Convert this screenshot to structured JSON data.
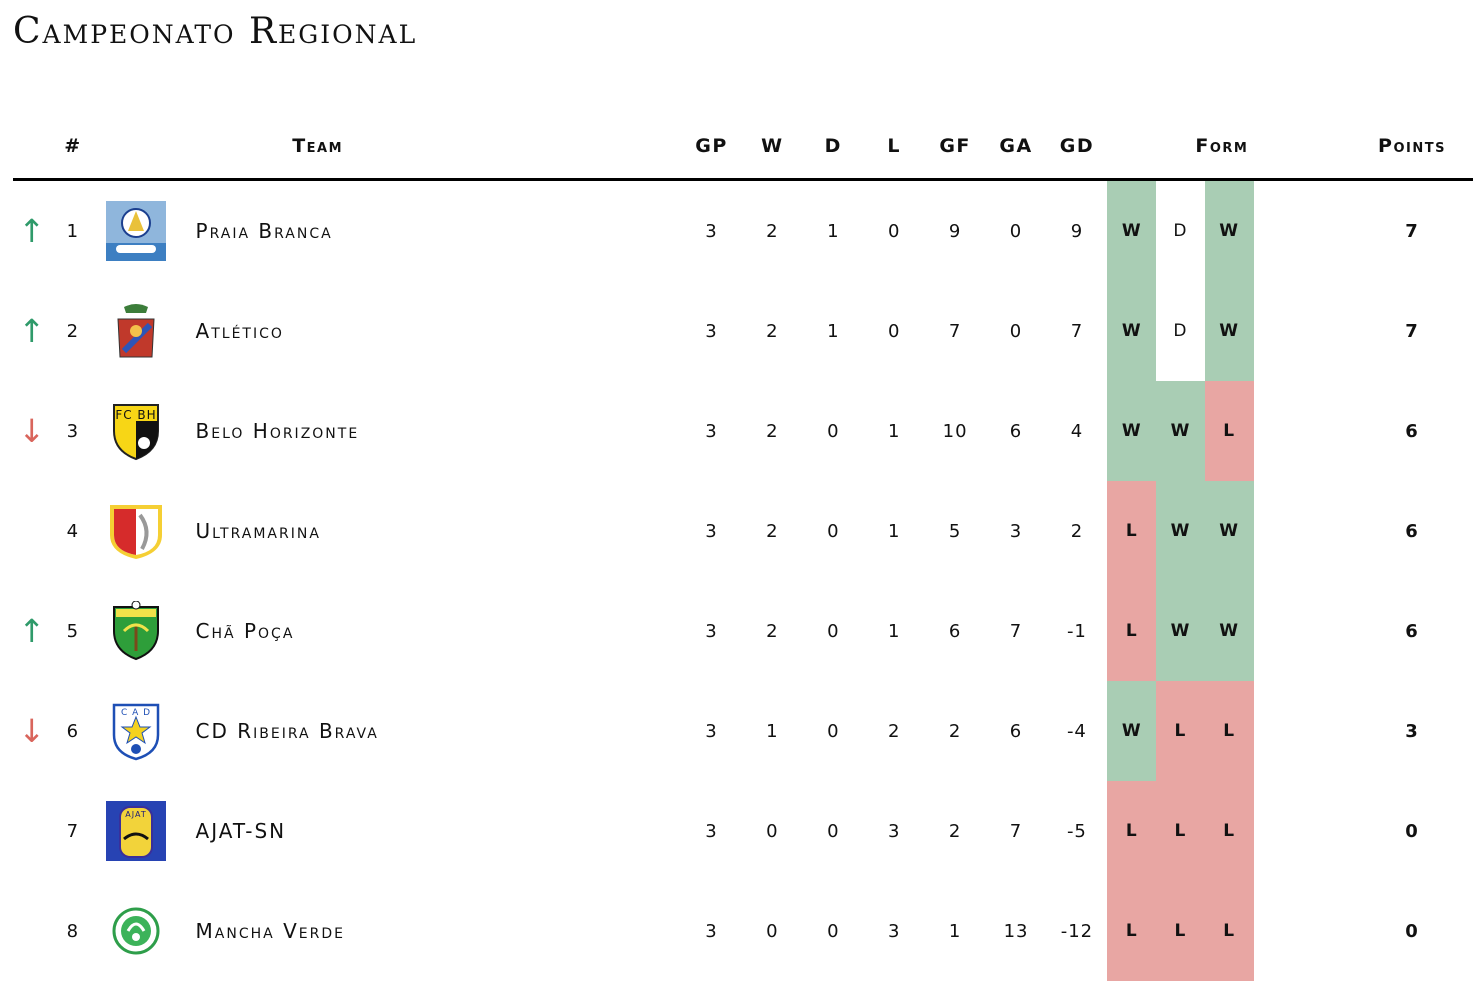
{
  "title": "Campeonato Regional",
  "headers": {
    "rank": "#",
    "team": "Team",
    "gp": "GP",
    "w": "W",
    "d": "D",
    "l": "L",
    "gf": "GF",
    "ga": "GA",
    "gd": "GD",
    "form": "Form",
    "points": "Points"
  },
  "rows": [
    {
      "change": "↑",
      "rank": "1",
      "team": "Praia Branca",
      "gp": "3",
      "w": "2",
      "d": "1",
      "l": "0",
      "gf": "9",
      "ga": "0",
      "gd": "9",
      "form": [
        "W",
        "D",
        "W"
      ],
      "points": "7"
    },
    {
      "change": "↑",
      "rank": "2",
      "team": "Atlético",
      "gp": "3",
      "w": "2",
      "d": "1",
      "l": "0",
      "gf": "7",
      "ga": "0",
      "gd": "7",
      "form": [
        "W",
        "D",
        "W"
      ],
      "points": "7"
    },
    {
      "change": "↓",
      "rank": "3",
      "team": "Belo Horizonte",
      "gp": "3",
      "w": "2",
      "d": "0",
      "l": "1",
      "gf": "10",
      "ga": "6",
      "gd": "4",
      "form": [
        "W",
        "W",
        "L"
      ],
      "points": "6"
    },
    {
      "change": "",
      "rank": "4",
      "team": "Ultramarina",
      "gp": "3",
      "w": "2",
      "d": "0",
      "l": "1",
      "gf": "5",
      "ga": "3",
      "gd": "2",
      "form": [
        "L",
        "W",
        "W"
      ],
      "points": "6"
    },
    {
      "change": "↑",
      "rank": "5",
      "team": "Chã Poça",
      "gp": "3",
      "w": "2",
      "d": "0",
      "l": "1",
      "gf": "6",
      "ga": "7",
      "gd": "-1",
      "form": [
        "L",
        "W",
        "W"
      ],
      "points": "6"
    },
    {
      "change": "↓",
      "rank": "6",
      "team": "CD Ribeira Brava",
      "gp": "3",
      "w": "1",
      "d": "0",
      "l": "2",
      "gf": "2",
      "ga": "6",
      "gd": "-4",
      "form": [
        "W",
        "L",
        "L"
      ],
      "points": "3"
    },
    {
      "change": "",
      "rank": "7",
      "team": "AJAT-SN",
      "gp": "3",
      "w": "0",
      "d": "0",
      "l": "3",
      "gf": "2",
      "ga": "7",
      "gd": "-5",
      "form": [
        "L",
        "L",
        "L"
      ],
      "points": "0"
    },
    {
      "change": "",
      "rank": "8",
      "team": "Mancha Verde",
      "gp": "3",
      "w": "0",
      "d": "0",
      "l": "3",
      "gf": "1",
      "ga": "13",
      "gd": "-12",
      "form": [
        "L",
        "L",
        "L"
      ],
      "points": "0"
    }
  ],
  "colors": {
    "win": "#a9cdb4",
    "loss": "#e8a6a3",
    "draw": "#ffffff",
    "up_arrow": "#2f9a6a",
    "down_arrow": "#d9655c"
  }
}
